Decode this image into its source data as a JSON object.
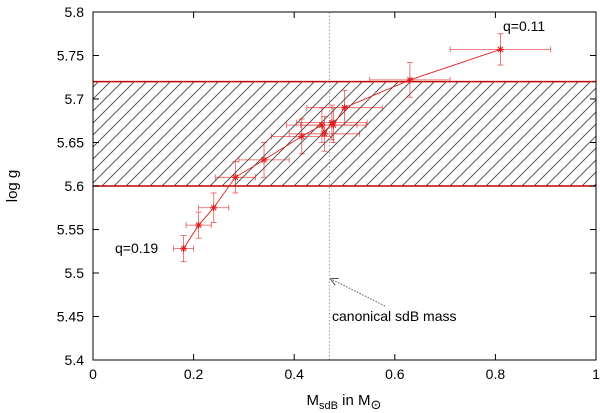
{
  "chart_data": {
    "type": "scatter",
    "xlabel_main": "M",
    "xlabel_sub1": "sdB",
    "xlabel_mid": " in M",
    "xlabel_sub2": "⊙",
    "ylabel": "log g",
    "xlim": [
      0,
      1
    ],
    "ylim": [
      5.4,
      5.8
    ],
    "xticks": [
      0,
      0.2,
      0.4,
      0.6,
      0.8,
      1
    ],
    "xtick_labels": [
      "0",
      "0.2",
      "0.4",
      "0.6",
      "0.8",
      "1"
    ],
    "yticks": [
      5.4,
      5.45,
      5.5,
      5.55,
      5.6,
      5.65,
      5.7,
      5.75,
      5.8
    ],
    "ytick_labels": [
      "5.4",
      "5.45",
      "5.5",
      "5.55",
      "5.6",
      "5.65",
      "5.7",
      "5.75",
      "5.8"
    ],
    "grid": false,
    "band": {
      "y0": 5.6,
      "y1": 5.72,
      "color": "#c00000",
      "hatch": "diagonal"
    },
    "canonical_line_x": 0.47,
    "series_color": "#e02020",
    "points": [
      {
        "x": 0.18,
        "y": 5.528,
        "xerr": 0.02,
        "yerr": 0.015
      },
      {
        "x": 0.21,
        "y": 5.555,
        "xerr": 0.025,
        "yerr": 0.015
      },
      {
        "x": 0.24,
        "y": 5.575,
        "xerr": 0.03,
        "yerr": 0.017
      },
      {
        "x": 0.283,
        "y": 5.61,
        "xerr": 0.04,
        "yerr": 0.018
      },
      {
        "x": 0.34,
        "y": 5.63,
        "xerr": 0.05,
        "yerr": 0.02
      },
      {
        "x": 0.415,
        "y": 5.657,
        "xerr": 0.06,
        "yerr": 0.02
      },
      {
        "x": 0.455,
        "y": 5.67,
        "xerr": 0.07,
        "yerr": 0.02
      },
      {
        "x": 0.46,
        "y": 5.66,
        "xerr": 0.07,
        "yerr": 0.02
      },
      {
        "x": 0.475,
        "y": 5.673,
        "xerr": 0.07,
        "yerr": 0.02
      },
      {
        "x": 0.478,
        "y": 5.67,
        "xerr": 0.065,
        "yerr": 0.02
      },
      {
        "x": 0.5,
        "y": 5.69,
        "xerr": 0.075,
        "yerr": 0.02
      },
      {
        "x": 0.63,
        "y": 5.722,
        "xerr": 0.08,
        "yerr": 0.02
      },
      {
        "x": 0.81,
        "y": 5.757,
        "xerr": 0.1,
        "yerr": 0.018
      }
    ],
    "annotations": {
      "q_high": {
        "text": "q=0.11"
      },
      "q_low": {
        "text": "q=0.19"
      },
      "canonical": {
        "text": "canonical sdB mass"
      }
    }
  }
}
